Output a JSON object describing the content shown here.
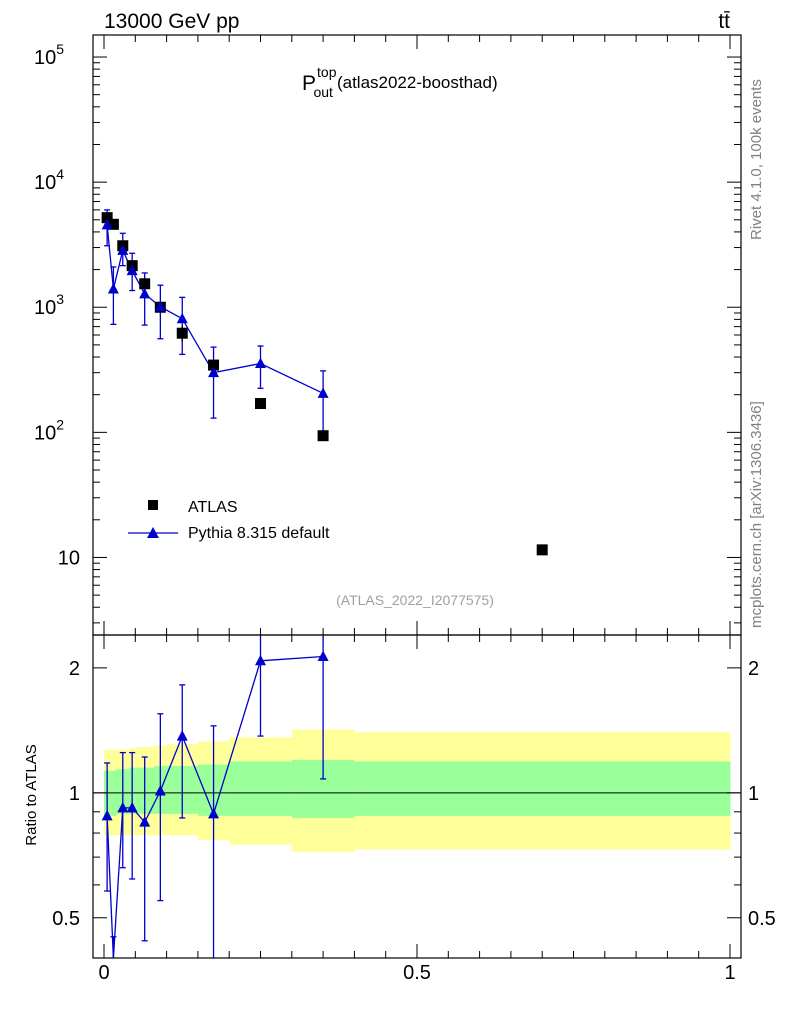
{
  "header": {
    "energy_label": "13000 GeV pp",
    "process_label": "tt̄"
  },
  "side_labels": {
    "rivet": "Rivet 4.1.0,  100k events",
    "mcplots": "mcplots.cern.ch [arXiv:1306.3436]"
  },
  "chart_data": [
    {
      "type": "scatter",
      "panel": "main",
      "title_main": "P",
      "title_sup": "top",
      "title_sub": "out",
      "title_suffix": "(atlas2022-boosthad)",
      "watermark": "(ATLAS_2022_I2077575)",
      "yscale": "log",
      "xlim": [
        0,
        1
      ],
      "ylim": [
        2.4,
        150000
      ],
      "y_ticks": [
        {
          "value": 10,
          "label": "10"
        },
        {
          "value": 100,
          "label": "10",
          "sup": "2"
        },
        {
          "value": 1000,
          "label": "10",
          "sup": "3"
        },
        {
          "value": 10000,
          "label": "10",
          "sup": "4"
        },
        {
          "value": 100000,
          "label": "10",
          "sup": "5"
        }
      ],
      "legend_position": "bottom-left",
      "series": [
        {
          "name": "ATLAS",
          "marker": "square",
          "color": "#000000",
          "x": [
            0.005,
            0.015,
            0.03,
            0.045,
            0.065,
            0.09,
            0.125,
            0.175,
            0.25,
            0.35,
            0.7
          ],
          "y": [
            5200,
            4600,
            3100,
            2150,
            1540,
            1000,
            620,
            345,
            170,
            94,
            11.5
          ],
          "yerr_low": [
            0,
            0,
            0,
            0,
            0,
            0,
            90,
            0,
            0,
            0,
            0
          ],
          "yerr_high": [
            0,
            0,
            0,
            0,
            0,
            0,
            90,
            0,
            0,
            0,
            0
          ]
        },
        {
          "name": "Pythia 8.315 default",
          "marker": "triangle",
          "color": "#0000cc",
          "line": true,
          "x": [
            0.005,
            0.015,
            0.03,
            0.045,
            0.065,
            0.09,
            0.125,
            0.175,
            0.25,
            0.35
          ],
          "y": [
            4550,
            1400,
            2850,
            1960,
            1280,
            1010,
            810,
            300,
            355,
            205
          ],
          "y_low": [
            3100,
            730,
            2150,
            1360,
            720,
            560,
            420,
            130,
            225,
            100
          ],
          "y_high": [
            6000,
            2100,
            3900,
            2700,
            1880,
            1500,
            1200,
            480,
            490,
            310
          ]
        }
      ]
    },
    {
      "type": "line",
      "panel": "ratio",
      "ylabel": "Ratio to ATLAS",
      "yscale": "log",
      "xlim": [
        0,
        1
      ],
      "ylim": [
        0.4,
        2.4
      ],
      "y_ticks": [
        {
          "value": 0.5,
          "label": "0.5"
        },
        {
          "value": 1,
          "label": "1"
        },
        {
          "value": 2,
          "label": "2"
        }
      ],
      "x_ticks": [
        {
          "value": 0,
          "label": "0"
        },
        {
          "value": 0.5,
          "label": "0.5"
        },
        {
          "value": 1,
          "label": "1"
        }
      ],
      "reference_line": 1,
      "bands": {
        "edges": [
          0,
          0.01,
          0.02,
          0.04,
          0.05,
          0.08,
          0.1,
          0.15,
          0.2,
          0.3,
          0.4,
          1.0
        ],
        "yellow_low": [
          0.79,
          0.79,
          0.79,
          0.79,
          0.79,
          0.79,
          0.79,
          0.77,
          0.75,
          0.72,
          0.73
        ],
        "yellow_high": [
          1.27,
          1.27,
          1.27,
          1.28,
          1.29,
          1.3,
          1.31,
          1.33,
          1.36,
          1.42,
          1.4
        ],
        "green_low": [
          0.88,
          0.88,
          0.89,
          0.89,
          0.89,
          0.89,
          0.89,
          0.88,
          0.88,
          0.87,
          0.88
        ],
        "green_high": [
          1.13,
          1.13,
          1.14,
          1.15,
          1.15,
          1.16,
          1.16,
          1.17,
          1.19,
          1.2,
          1.19
        ],
        "yellow_color": "#ffff99",
        "green_color": "#99ff99"
      },
      "series": [
        {
          "name": "Pythia 8.315 default",
          "marker": "triangle",
          "color": "#0000cc",
          "x": [
            0.005,
            0.015,
            0.03,
            0.045,
            0.065,
            0.09,
            0.125,
            0.175,
            0.25,
            0.35
          ],
          "y": [
            0.88,
            0.3,
            0.92,
            0.92,
            0.85,
            1.01,
            1.37,
            0.89,
            2.08,
            2.13
          ],
          "y_low": [
            0.58,
            0.2,
            0.66,
            0.62,
            0.44,
            0.55,
            0.87,
            0.35,
            1.37,
            1.08
          ],
          "y_high": [
            1.18,
            0.45,
            1.25,
            1.25,
            1.22,
            1.55,
            1.82,
            1.45,
            2.45,
            2.45
          ]
        }
      ]
    }
  ]
}
